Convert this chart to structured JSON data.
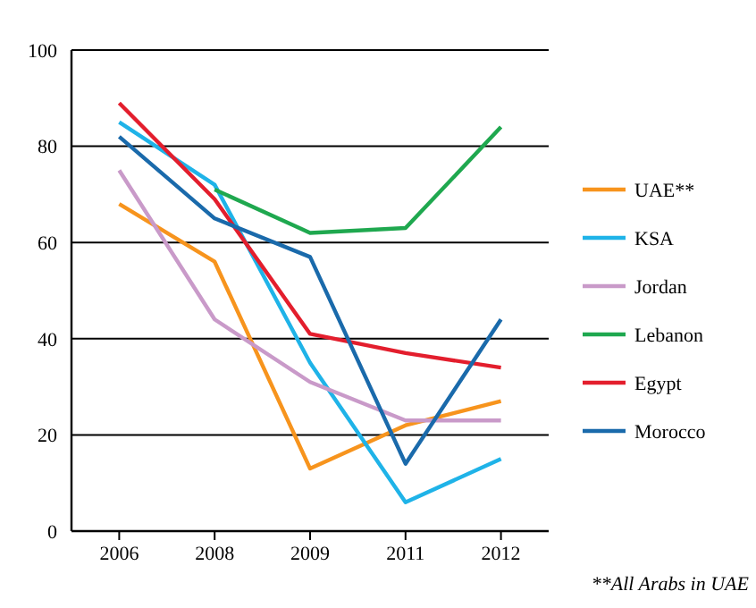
{
  "chart_data": {
    "type": "line",
    "categories": [
      "2006",
      "2008",
      "2009",
      "2011",
      "2012"
    ],
    "series": [
      {
        "name": "UAE**",
        "color": "#f7941d",
        "values": [
          68,
          56,
          13,
          22,
          27
        ]
      },
      {
        "name": "KSA",
        "color": "#1fb3e8",
        "values": [
          85,
          72,
          35,
          6,
          15
        ]
      },
      {
        "name": "Jordan",
        "color": "#c99ac9",
        "values": [
          75,
          44,
          31,
          23,
          23
        ]
      },
      {
        "name": "Lebanon",
        "color": "#1fa84f",
        "values": [
          null,
          71,
          62,
          63,
          84
        ]
      },
      {
        "name": "Egypt",
        "color": "#e31e2d",
        "values": [
          89,
          69,
          41,
          37,
          34
        ]
      },
      {
        "name": "Morocco",
        "color": "#1a6aab",
        "values": [
          82,
          65,
          57,
          14,
          44
        ]
      }
    ],
    "ylim": [
      0,
      100
    ],
    "yticks": [
      0,
      20,
      40,
      60,
      80,
      100
    ],
    "grid": "y",
    "legend": "right",
    "marker": "none",
    "line_style": "solid",
    "annotations": [
      "**All Arabs in UAE"
    ]
  }
}
